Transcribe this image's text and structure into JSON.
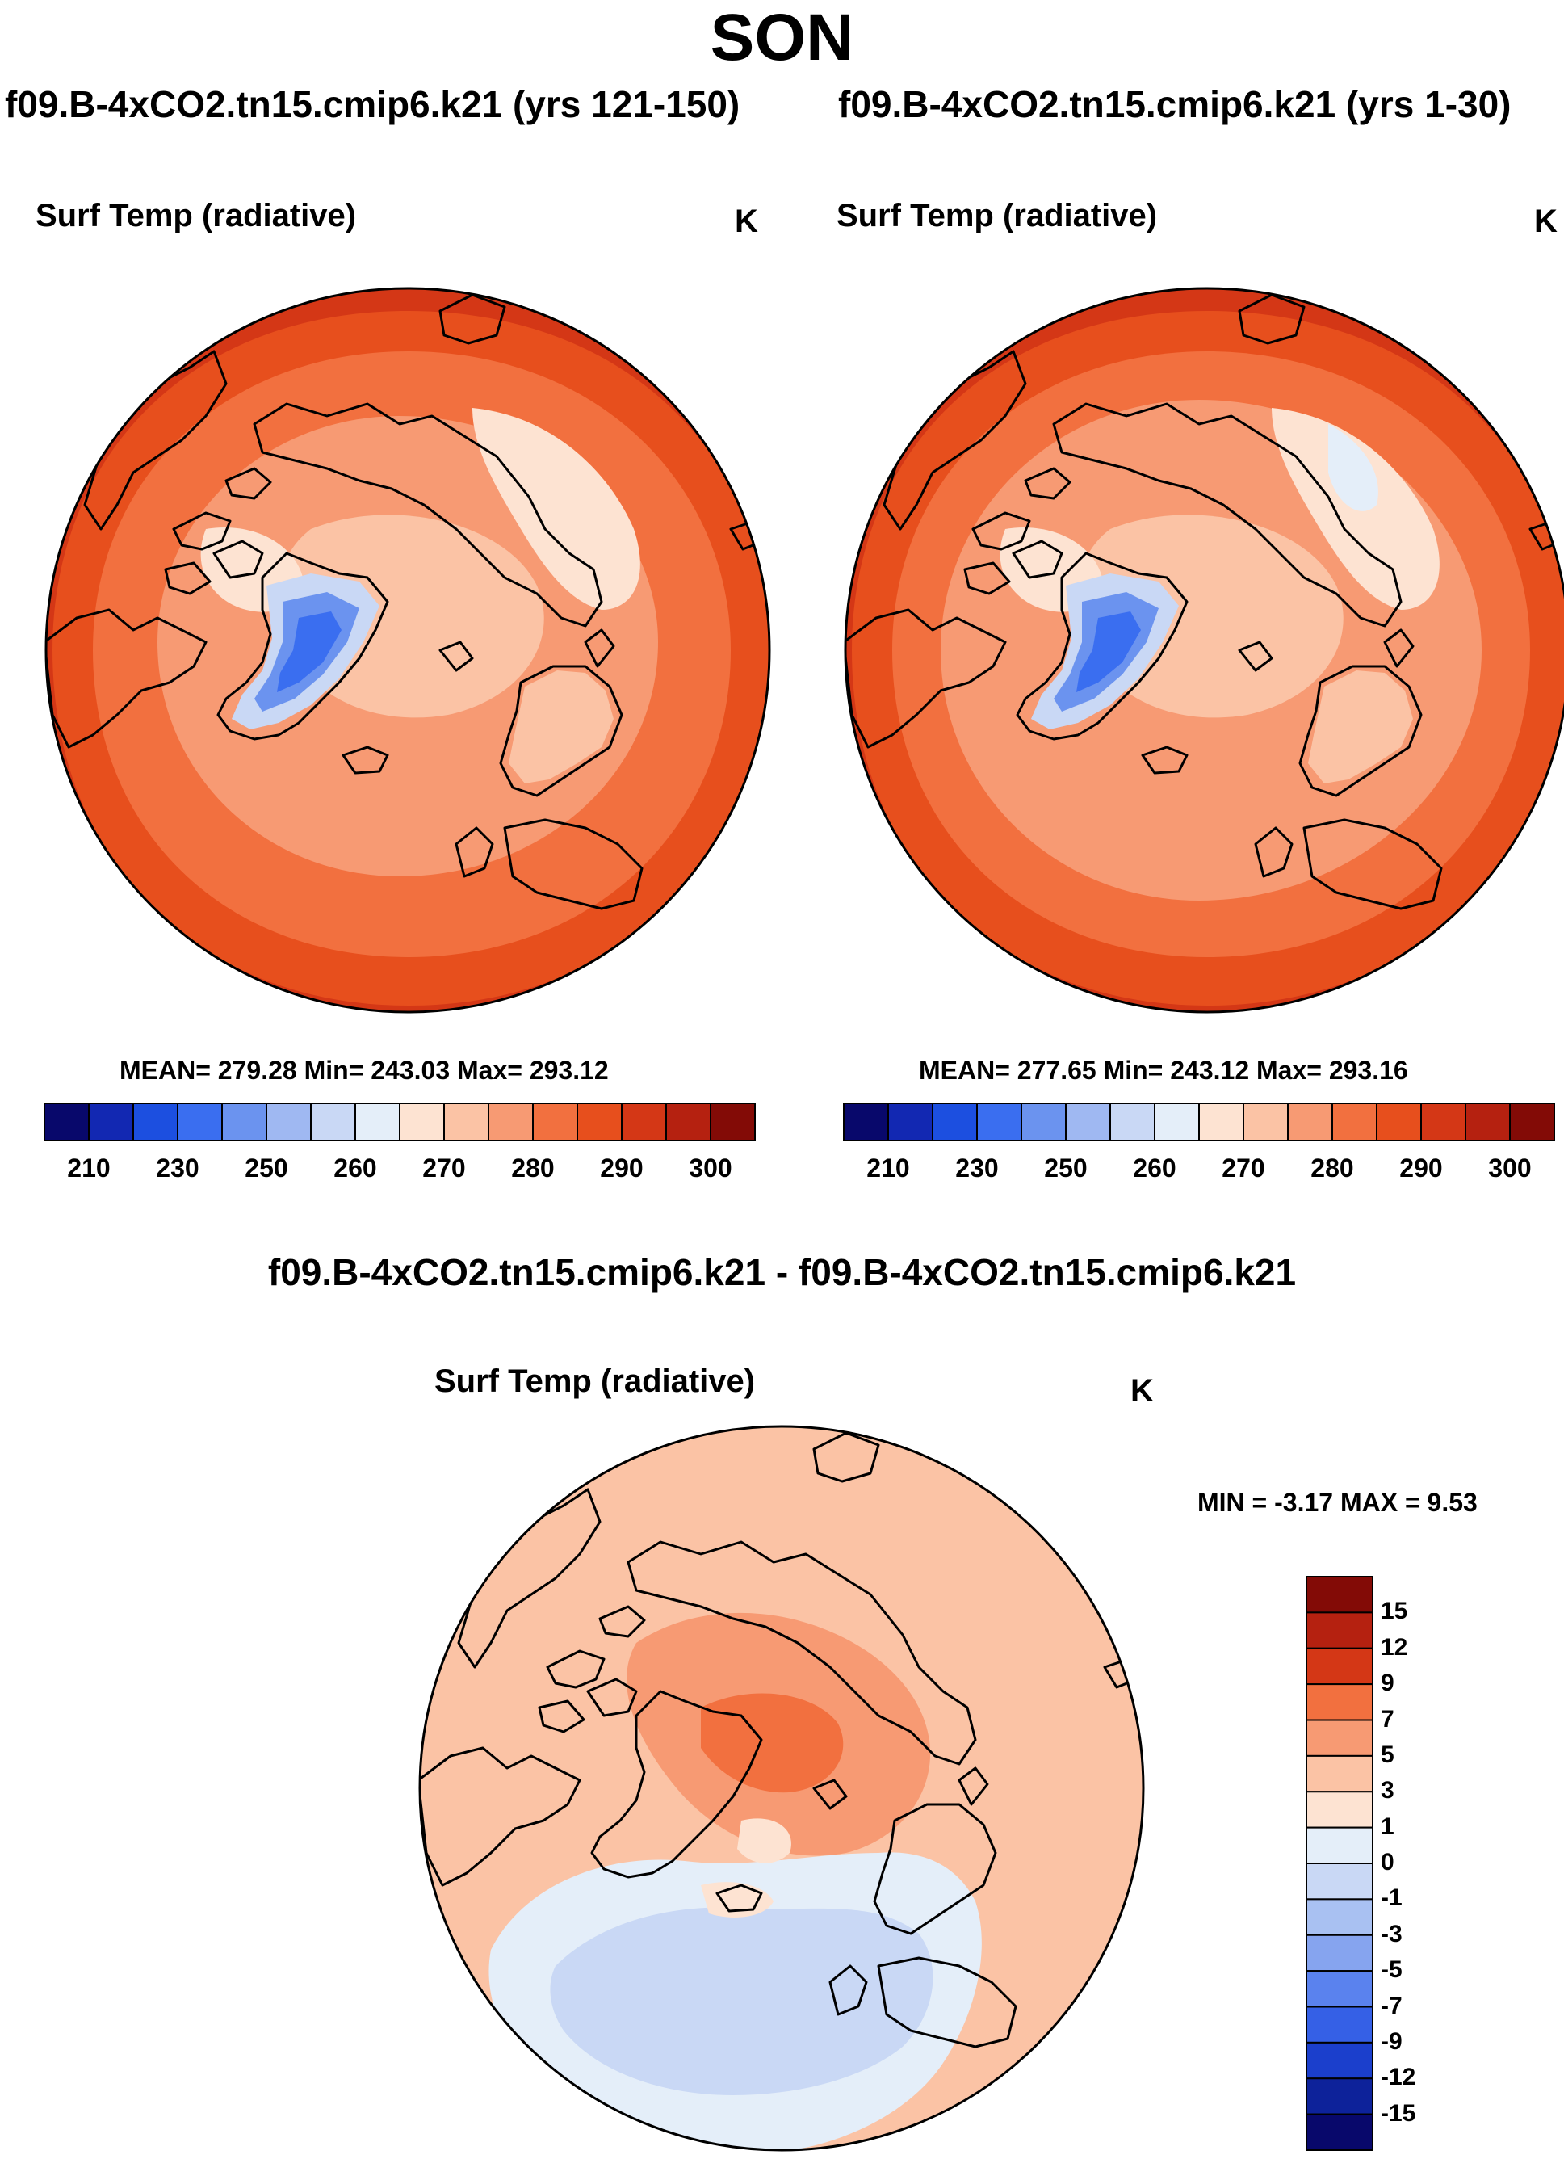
{
  "figure": {
    "season": "SON",
    "diff_title": "f09.B-4xCO2.tn15.cmip6.k21 - f09.B-4xCO2.tn15.cmip6.k21"
  },
  "panels": [
    {
      "case_title": "f09.B-4xCO2.tn15.cmip6.k21 (yrs 121-150)",
      "variable": "Surf Temp (radiative)",
      "units": "K",
      "stats": "MEAN= 279.28  Min= 243.03  Max= 293.12"
    },
    {
      "case_title": "f09.B-4xCO2.tn15.cmip6.k21 (yrs 1-30)",
      "variable": "Surf Temp (radiative)",
      "units": "K",
      "stats": "MEAN= 277.65  Min= 243.12  Max= 293.16"
    },
    {
      "variable": "Surf Temp (radiative)",
      "units": "K",
      "stats": "MIN =  -3.17 MAX =   9.53"
    }
  ],
  "chart_data": [
    {
      "type": "heatmap",
      "projection": "north polar stereographic",
      "title": "f09.B-4xCO2.tn15.cmip6.k21 (yrs 121-150)",
      "variable": "Surf Temp (radiative)",
      "units": "K",
      "mean": 279.28,
      "min": 243.03,
      "max": 293.12,
      "colorbar_ticks": [
        "210",
        "230",
        "250",
        "260",
        "270",
        "280",
        "290",
        "300"
      ],
      "levels": [
        210,
        220,
        230,
        240,
        245,
        250,
        255,
        260,
        265,
        270,
        275,
        280,
        285,
        290,
        295,
        300
      ]
    },
    {
      "type": "heatmap",
      "projection": "north polar stereographic",
      "title": "f09.B-4xCO2.tn15.cmip6.k21 (yrs 1-30)",
      "variable": "Surf Temp (radiative)",
      "units": "K",
      "mean": 277.65,
      "min": 243.12,
      "max": 293.16,
      "colorbar_ticks": [
        "210",
        "230",
        "250",
        "260",
        "270",
        "280",
        "290",
        "300"
      ],
      "levels": [
        210,
        220,
        230,
        240,
        245,
        250,
        255,
        260,
        265,
        270,
        275,
        280,
        285,
        290,
        295,
        300
      ]
    },
    {
      "type": "heatmap",
      "projection": "north polar stereographic",
      "title": "f09.B-4xCO2.tn15.cmip6.k21 - f09.B-4xCO2.tn15.cmip6.k21",
      "variable": "Surf Temp (radiative)",
      "units": "K",
      "min": -3.17,
      "max": 9.53,
      "colorbar_ticks": [
        "15",
        "12",
        "9",
        "7",
        "5",
        "3",
        "1",
        "0",
        "-1",
        "-3",
        "-5",
        "-7",
        "-9",
        "-12",
        "-15"
      ]
    }
  ],
  "colors": {
    "abs_scale": [
      "#08086b",
      "#1228b2",
      "#1c4fe0",
      "#3a6ef0",
      "#6b93ef",
      "#9fb8f2",
      "#c9d8f5",
      "#e4eef9",
      "#fde3d2",
      "#fbc3a5",
      "#f79a73",
      "#f2703f",
      "#e74f1d",
      "#d43716",
      "#b52110",
      "#830b06"
    ],
    "diff_scale": [
      "#830b06",
      "#b52110",
      "#d43716",
      "#f2703f",
      "#f79a73",
      "#fbc3a5",
      "#fde3d2",
      "#e4eef9",
      "#c9d8f5",
      "#a9c1f2",
      "#86a4ef",
      "#5a82ee",
      "#3560e6",
      "#1b3fcc",
      "#0d229a",
      "#08086b"
    ]
  }
}
